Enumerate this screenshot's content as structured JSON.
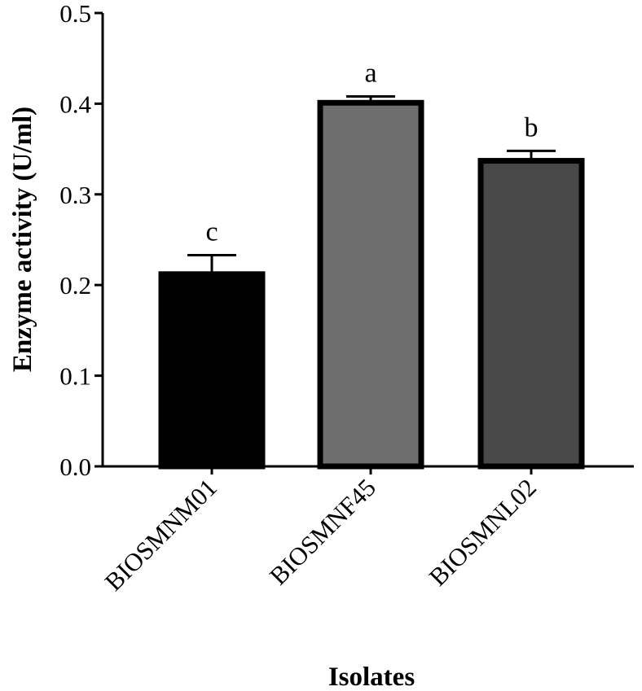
{
  "chart_data": {
    "type": "bar",
    "title": "",
    "xlabel": "Isolates",
    "ylabel": "Enzyme activity (U/ml)",
    "ylim": [
      0,
      0.5
    ],
    "yticks": [
      "0.0",
      "0.1",
      "0.2",
      "0.3",
      "0.4",
      "0.5"
    ],
    "categories": [
      "BIOSMNM01",
      "BIOSMNF45",
      "BIOSMNL02"
    ],
    "values": [
      0.212,
      0.401,
      0.337
    ],
    "errors": [
      0.021,
      0.007,
      0.011
    ],
    "significance_labels": [
      "c",
      "a",
      "b"
    ],
    "bar_colors": [
      "#000000",
      "#6e6e6e",
      "#484848"
    ],
    "grid": false
  }
}
